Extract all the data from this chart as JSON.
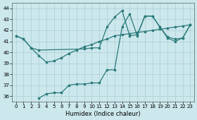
{
  "xlabel": "Humidex (Indice chaleur)",
  "background_color": "#cce8ec",
  "grid_color": "#aacdd4",
  "line_color": "#2a7a7a",
  "xlim": [
    -0.5,
    23.5
  ],
  "ylim": [
    35.5,
    44.5
  ],
  "yticks": [
    36,
    37,
    38,
    39,
    40,
    41,
    42,
    43,
    44
  ],
  "xticks": [
    0,
    1,
    2,
    3,
    4,
    5,
    6,
    7,
    8,
    9,
    10,
    11,
    12,
    13,
    14,
    15,
    16,
    17,
    18,
    19,
    20,
    21,
    22,
    23
  ],
  "line1_x": [
    0,
    1,
    2,
    3,
    4,
    5,
    6,
    7,
    8,
    9,
    10,
    11,
    12,
    13,
    14,
    15,
    16,
    17,
    18,
    19,
    20,
    21,
    22,
    23
  ],
  "line1_y": [
    41.5,
    41.2,
    40.4,
    39.7,
    39.1,
    39.2,
    39.5,
    39.9,
    40.2,
    40.5,
    40.7,
    41.0,
    41.2,
    41.5,
    41.6,
    41.7,
    41.8,
    41.9,
    42.0,
    42.1,
    42.2,
    42.3,
    42.4,
    42.5
  ],
  "line2_x": [
    0,
    1,
    2,
    3,
    9,
    10,
    11,
    12,
    13,
    14,
    15,
    16,
    17,
    18,
    19,
    20,
    21,
    22,
    23
  ],
  "line2_y": [
    41.5,
    41.2,
    40.4,
    40.2,
    40.3,
    40.4,
    40.4,
    42.3,
    43.2,
    43.8,
    41.5,
    41.6,
    43.3,
    43.3,
    42.3,
    41.4,
    41.2,
    41.3,
    42.5
  ],
  "line3_x": [
    3,
    4,
    5,
    6,
    7,
    8,
    9,
    10,
    11,
    12,
    13,
    14,
    15,
    16,
    17,
    18,
    19,
    20,
    21,
    22,
    23
  ],
  "line3_y": [
    35.8,
    36.2,
    36.3,
    36.3,
    37.0,
    37.1,
    37.1,
    37.2,
    37.2,
    38.4,
    38.4,
    42.3,
    43.5,
    41.5,
    43.3,
    43.3,
    42.3,
    41.3,
    41.0,
    41.3,
    42.5
  ]
}
